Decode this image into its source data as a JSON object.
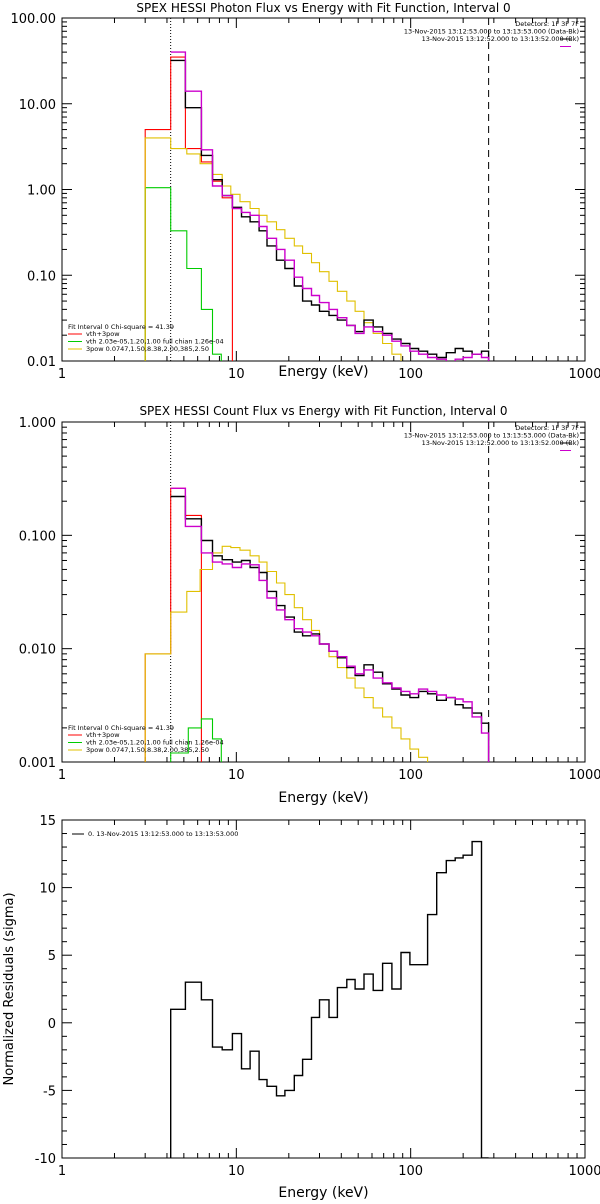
{
  "chart_data": [
    {
      "type": "line",
      "title": "SPEX HESSI Photon Flux vs Energy with Fit Function, Interval 0",
      "xlabel": "Energy (keV)",
      "ylabel": "",
      "xscale": "log",
      "yscale": "log",
      "xlim": [
        1,
        1000
      ],
      "ylim": [
        0.01,
        100
      ],
      "xticks": [
        {
          "v": 1,
          "label": "1"
        },
        {
          "v": 10,
          "label": "10"
        },
        {
          "v": 100,
          "label": "100"
        },
        {
          "v": 1000,
          "label": "1000"
        }
      ],
      "yticks": [
        {
          "v": 0.01,
          "label": "0.01"
        },
        {
          "v": 0.1,
          "label": "0.10"
        },
        {
          "v": 1,
          "label": "1.00"
        },
        {
          "v": 10,
          "label": "10.00"
        },
        {
          "v": 100,
          "label": "100.00"
        }
      ],
      "vlines": [
        {
          "x": 4.2,
          "style": "dotted"
        },
        {
          "x": 280,
          "style": "dashed"
        }
      ],
      "info_lines": [
        "Detectors: 1F 3F 7F",
        "13-Nov-2015 13:12:53.000 to 13:13:53.000 (Data-Bk)",
        "13-Nov-2015 13:12:52.000 to 13:13:52.000 (Bk)"
      ],
      "fit_header": "Fit Interval  0   Chi-square = 41.39",
      "series": [
        {
          "name": "vth+3pow",
          "color": "#ff0000",
          "edges": [
            3,
            4.2,
            5.1,
            6.3,
            7.3,
            8.3,
            9.5
          ],
          "values": [
            5,
            35,
            3,
            2.1,
            1.25,
            0.8
          ]
        },
        {
          "name": "vth 2.03e-05,1.20,1.00  full chian 1.26e-04",
          "color": "#00cc00",
          "edges": [
            3,
            4.2,
            5.2,
            6.3,
            7.3,
            8.2
          ],
          "values": [
            1.05,
            0.33,
            0.12,
            0.04,
            0.012
          ]
        },
        {
          "name": "3pow 0.0747,1.50,8.38,2.00,385,2.50",
          "color": "#e0c000",
          "edges": [
            3,
            4.2,
            5.2,
            6.2,
            7.3,
            8.3,
            9.3,
            10.5,
            12,
            13.5,
            15,
            17,
            19,
            21.5,
            24,
            27,
            30,
            34,
            38,
            43,
            48,
            54,
            61,
            69,
            78,
            88,
            99
          ],
          "values": [
            4,
            3,
            2.6,
            2,
            1.5,
            1.1,
            0.88,
            0.72,
            0.6,
            0.5,
            0.42,
            0.34,
            0.27,
            0.22,
            0.18,
            0.14,
            0.11,
            0.085,
            0.065,
            0.05,
            0.038,
            0.028,
            0.021,
            0.016,
            0.012,
            0.009
          ]
        }
      ],
      "data_series": [
        {
          "name": "data",
          "color": "#000000",
          "edges": [
            4.2,
            5.1,
            6.3,
            7.3,
            8.3,
            9.5,
            10.7,
            12,
            13.5,
            15,
            17,
            19,
            21.5,
            24,
            27,
            30,
            34,
            38,
            43,
            48,
            54,
            61,
            69,
            78,
            88,
            99,
            111,
            125,
            141,
            160,
            180,
            200,
            225,
            255,
            280
          ],
          "values": [
            32,
            9,
            2.5,
            1.3,
            0.85,
            0.62,
            0.48,
            0.42,
            0.33,
            0.22,
            0.15,
            0.12,
            0.075,
            0.05,
            0.045,
            0.038,
            0.034,
            0.03,
            0.026,
            0.022,
            0.03,
            0.025,
            0.021,
            0.018,
            0.016,
            0.014,
            0.013,
            0.012,
            0.011,
            0.0125,
            0.014,
            0.013,
            0.012,
            0.013
          ]
        },
        {
          "name": "model",
          "color": "#cc00cc",
          "edges": [
            4.2,
            5.1,
            6.3,
            7.3,
            8.3,
            9.5,
            10.7,
            12,
            13.5,
            15,
            17,
            19,
            21.5,
            24,
            27,
            30,
            34,
            38,
            43,
            48,
            54,
            61,
            69,
            78,
            88,
            99,
            111,
            125,
            141,
            160,
            180,
            200,
            225,
            255,
            280
          ],
          "values": [
            40,
            14,
            2.9,
            1.1,
            0.85,
            0.6,
            0.54,
            0.5,
            0.37,
            0.27,
            0.2,
            0.15,
            0.095,
            0.07,
            0.058,
            0.048,
            0.04,
            0.032,
            0.026,
            0.021,
            0.025,
            0.022,
            0.02,
            0.017,
            0.015,
            0.013,
            0.012,
            0.011,
            0.0105,
            0.01,
            0.0105,
            0.011,
            0.012,
            0.011
          ]
        }
      ]
    },
    {
      "type": "line",
      "title": "SPEX HESSI Count Flux vs Energy with Fit Function, Interval 0",
      "xlabel": "Energy (keV)",
      "ylabel": "",
      "xscale": "log",
      "yscale": "log",
      "xlim": [
        1,
        1000
      ],
      "ylim": [
        0.001,
        1
      ],
      "xticks": [
        {
          "v": 1,
          "label": "1"
        },
        {
          "v": 10,
          "label": "10"
        },
        {
          "v": 100,
          "label": "100"
        },
        {
          "v": 1000,
          "label": "1000"
        }
      ],
      "yticks": [
        {
          "v": 0.001,
          "label": "0.001"
        },
        {
          "v": 0.01,
          "label": "0.010"
        },
        {
          "v": 0.1,
          "label": "0.100"
        },
        {
          "v": 1,
          "label": "1.000"
        }
      ],
      "vlines": [
        {
          "x": 4.2,
          "style": "dotted"
        },
        {
          "x": 280,
          "style": "dashed"
        }
      ],
      "info_lines": [
        "Detectors: 1F 3F 7F",
        "13-Nov-2015 13:12:53.000 to 13:13:53.000 (Data-Bk)",
        "13-Nov-2015 13:12:52.000 to 13:13:52.000 (Bk)"
      ],
      "fit_header": "Fit Interval  0   Chi-square = 41.39",
      "series": [
        {
          "name": "vth+3pow",
          "color": "#ff0000",
          "edges": [
            3,
            4.2,
            5.1,
            6.3
          ],
          "values": [
            0.009,
            0.26,
            0.15
          ]
        },
        {
          "name": "vth 2.03e-05,1.20,1.00  full chian 1.26e-04",
          "color": "#00cc00",
          "edges": [
            4.2,
            5.3,
            6.3,
            7.3,
            8.2
          ],
          "values": [
            0.0012,
            0.002,
            0.0024,
            0.0016
          ]
        },
        {
          "name": "3pow 0.0747,1.50,8.38,2.00,385,2.50",
          "color": "#e0c000",
          "edges": [
            3,
            4.2,
            5.2,
            6.2,
            7.3,
            8.3,
            9.3,
            10.5,
            12,
            13.5,
            15,
            17,
            19,
            21.5,
            24,
            27,
            30,
            34,
            38,
            43,
            48,
            54,
            61,
            69,
            78,
            88,
            99,
            111,
            125,
            135
          ],
          "values": [
            0.009,
            0.021,
            0.032,
            0.05,
            0.07,
            0.08,
            0.078,
            0.074,
            0.066,
            0.058,
            0.048,
            0.038,
            0.03,
            0.023,
            0.018,
            0.0145,
            0.011,
            0.0085,
            0.0068,
            0.0055,
            0.0045,
            0.0037,
            0.003,
            0.0025,
            0.002,
            0.0016,
            0.0013,
            0.0011,
            0.001
          ]
        }
      ],
      "data_series": [
        {
          "name": "data",
          "color": "#000000",
          "edges": [
            4.2,
            5.1,
            6.3,
            7.3,
            8.3,
            9.5,
            10.7,
            12,
            13.5,
            15,
            17,
            19,
            21.5,
            24,
            27,
            30,
            34,
            38,
            43,
            48,
            54,
            61,
            69,
            78,
            88,
            99,
            111,
            125,
            141,
            160,
            180,
            200,
            225,
            255,
            280
          ],
          "values": [
            0.22,
            0.14,
            0.09,
            0.066,
            0.061,
            0.058,
            0.06,
            0.052,
            0.047,
            0.032,
            0.024,
            0.019,
            0.014,
            0.013,
            0.0135,
            0.011,
            0.0095,
            0.0083,
            0.0068,
            0.0058,
            0.0072,
            0.0062,
            0.0049,
            0.0044,
            0.0039,
            0.0037,
            0.0042,
            0.004,
            0.0035,
            0.0037,
            0.0032,
            0.003,
            0.0027,
            0.0022
          ]
        },
        {
          "name": "model",
          "color": "#cc00cc",
          "edges": [
            4.2,
            5.1,
            6.3,
            7.3,
            8.3,
            9.5,
            10.7,
            12,
            13.5,
            15,
            17,
            19,
            21.5,
            24,
            27,
            30,
            34,
            38,
            43,
            48,
            54,
            61,
            69,
            78,
            88,
            99,
            111,
            125,
            141,
            160,
            180,
            200,
            225,
            255,
            280
          ],
          "values": [
            0.26,
            0.12,
            0.07,
            0.058,
            0.056,
            0.052,
            0.056,
            0.055,
            0.04,
            0.028,
            0.022,
            0.018,
            0.015,
            0.014,
            0.013,
            0.011,
            0.0095,
            0.0085,
            0.007,
            0.006,
            0.0065,
            0.0055,
            0.005,
            0.0045,
            0.0042,
            0.004,
            0.0044,
            0.0042,
            0.0039,
            0.0037,
            0.0036,
            0.0034,
            0.0025,
            0.0018
          ]
        }
      ]
    },
    {
      "type": "line",
      "title": "",
      "xlabel": "Energy (keV)",
      "ylabel": "Normalized Residuals (sigma)",
      "xscale": "log",
      "yscale": "linear",
      "xlim": [
        1,
        1000
      ],
      "ylim": [
        -10,
        15
      ],
      "xticks": [
        {
          "v": 1,
          "label": "1"
        },
        {
          "v": 10,
          "label": "10"
        },
        {
          "v": 100,
          "label": "100"
        },
        {
          "v": 1000,
          "label": "1000"
        }
      ],
      "yticks": [
        {
          "v": -10,
          "label": "-10"
        },
        {
          "v": -5,
          "label": "-5"
        },
        {
          "v": 0,
          "label": "0"
        },
        {
          "v": 5,
          "label": "5"
        },
        {
          "v": 10,
          "label": "10"
        },
        {
          "v": 15,
          "label": "15"
        }
      ],
      "legend": "0. 13-Nov-2015 13:12:53.000 to 13:13:53.000",
      "residuals": {
        "color": "#000000",
        "edges": [
          4.2,
          5.1,
          6.3,
          7.3,
          8.3,
          9.5,
          10.7,
          12,
          13.5,
          15,
          17,
          19,
          21.5,
          24,
          27,
          30,
          34,
          38,
          43,
          48,
          54,
          61,
          69,
          78,
          88,
          99,
          111,
          125,
          141,
          160,
          180,
          200,
          225,
          255,
          280
        ],
        "values": [
          1,
          3,
          1.7,
          -1.8,
          -2,
          -0.8,
          -3.4,
          -2.1,
          -4.2,
          -4.7,
          -5.4,
          -5,
          -3.9,
          -2.7,
          0.4,
          1.7,
          0.4,
          2.6,
          3.2,
          2.5,
          3.6,
          2.4,
          4.4,
          2.5,
          5.2,
          4.3,
          4.3,
          8,
          11.1,
          12,
          12.2,
          12.4,
          13.4,
          -10
        ]
      }
    }
  ]
}
